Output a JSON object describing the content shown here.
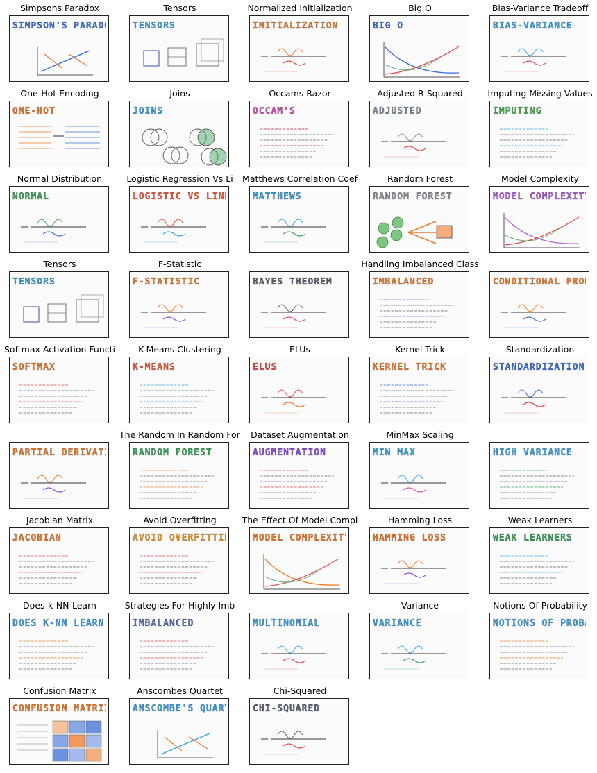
{
  "gallery": {
    "items": [
      {
        "title": "Simpsons Paradox",
        "accent": "#3b6fd6",
        "accent2": "#e4762a",
        "sketch": "SIMPSON'S PARADOX",
        "motif": "lines"
      },
      {
        "title": "Tensors",
        "accent": "#3aa1e0",
        "accent2": "#3b4fa8",
        "sketch": "TENSORS",
        "motif": "cubes"
      },
      {
        "title": "Normalized Initialization",
        "accent": "#ef7a2a",
        "accent2": "#d94a2f",
        "sketch": "INITIALIZATION",
        "motif": "formula"
      },
      {
        "title": "Big O",
        "accent": "#3b6fd6",
        "accent2": "#e24a4a",
        "sketch": "BIG O",
        "motif": "curves"
      },
      {
        "title": "Bias-Variance Tradeoff",
        "accent": "#3aa1e0",
        "accent2": "#e24a4a",
        "sketch": "BIAS-VARIANCE",
        "motif": "formula"
      },
      {
        "title": "One-Hot Encoding",
        "accent": "#ef7a2a",
        "accent2": "#3b6fd6",
        "sketch": "ONE-HOT",
        "motif": "table"
      },
      {
        "title": "Joins",
        "accent": "#3aa1e0",
        "accent2": "#3aa25a",
        "sketch": "JOINS",
        "motif": "venn"
      },
      {
        "title": "Occams Razor",
        "accent": "#d64fb4",
        "accent2": "#c2185b",
        "sketch": "OCCAM'S",
        "motif": "text"
      },
      {
        "title": "Adjusted R-Squared",
        "accent": "#7f8c9a",
        "accent2": "#e24a4a",
        "sketch": "ADJUSTED",
        "motif": "formula"
      },
      {
        "title": "Imputing Missing Values",
        "accent": "#4caf50",
        "accent2": "#3aa1e0",
        "sketch": "IMPUTING",
        "motif": "text"
      },
      {
        "title": "Normal Distribution",
        "accent": "#3aa25a",
        "accent2": "#3b6fd6",
        "sketch": "NORMAL",
        "motif": "formula"
      },
      {
        "title": "Logistic Regression Vs Li",
        "accent": "#ef5a3a",
        "accent2": "#3aa1e0",
        "sketch": "LOGISTIC VS LINEAR",
        "motif": "formula"
      },
      {
        "title": "Matthews Correlation Coef",
        "accent": "#3aa1e0",
        "accent2": "#3aa25a",
        "sketch": "MATTHEWS",
        "motif": "formula"
      },
      {
        "title": "Random Forest",
        "accent": "#8a8f98",
        "accent2": "#ef7a2a",
        "sketch": "RANDOM FOREST",
        "motif": "trees"
      },
      {
        "title": "Model Complexity",
        "accent": "#b05fd6",
        "accent2": "#e24a4a",
        "sketch": "MODEL COMPLEXITY",
        "motif": "curves"
      },
      {
        "title": "Tensors",
        "accent": "#3aa1e0",
        "accent2": "#3b4fa8",
        "sketch": "TENSORS",
        "motif": "cubes"
      },
      {
        "title": "F-Statistic",
        "accent": "#ef7a2a",
        "accent2": "#8a4fd6",
        "sketch": "F-STATISTIC",
        "motif": "formula"
      },
      {
        "title": "",
        "accent": "#5a6270",
        "accent2": "#e24a4a",
        "sketch": "BAYES THEOREM",
        "motif": "formula"
      },
      {
        "title": "Handling Imbalanced Class",
        "accent": "#ef7a2a",
        "accent2": "#3b6fd6",
        "sketch": "IMBALANCED",
        "motif": "text"
      },
      {
        "title": "",
        "accent": "#ef7a2a",
        "accent2": "#3b6fd6",
        "sketch": "CONDITIONAL PROBABILITY",
        "motif": "formula"
      },
      {
        "title": "Softmax Activation Functi",
        "accent": "#ef7a2a",
        "accent2": "#e24a4a",
        "sketch": "SOFTMAX",
        "motif": "text"
      },
      {
        "title": "K-Means Clustering",
        "accent": "#ef5a3a",
        "accent2": "#3aa1e0",
        "sketch": "K-MEANS",
        "motif": "text"
      },
      {
        "title": "ELUs",
        "accent": "#e24a4a",
        "accent2": "#ef7a2a",
        "sketch": "ELUs",
        "motif": "formula"
      },
      {
        "title": "Kernel Trick",
        "accent": "#ef7a2a",
        "accent2": "#3b6fd6",
        "sketch": "KERNEL TRICK",
        "motif": "text"
      },
      {
        "title": "Standardization",
        "accent": "#3b6fd6",
        "accent2": "#e24a4a",
        "sketch": "STANDARDIZATION",
        "motif": "formula"
      },
      {
        "title": "",
        "accent": "#ef7a2a",
        "accent2": "#8a4fd6",
        "sketch": "PARTIAL DERIVATIVE",
        "motif": "formula"
      },
      {
        "title": "The Random In Random Fore",
        "accent": "#3aa25a",
        "accent2": "#ef7a2a",
        "sketch": "RANDOM FOREST",
        "motif": "text"
      },
      {
        "title": "Dataset Augmentation",
        "accent": "#8a4fd6",
        "accent2": "#e24a4a",
        "sketch": "AUGMENTATION",
        "motif": "text"
      },
      {
        "title": "MinMax Scaling",
        "accent": "#3aa1e0",
        "accent2": "#d64fb4",
        "sketch": "MIN MAX",
        "motif": "formula"
      },
      {
        "title": "",
        "accent": "#3aa1e0",
        "accent2": "#3aa25a",
        "sketch": "HIGH VARIANCE",
        "motif": "text"
      },
      {
        "title": "Jacobian Matrix",
        "accent": "#ef7a2a",
        "accent2": "#e24a4a",
        "sketch": "JACOBIAN",
        "motif": "text"
      },
      {
        "title": "Avoid Overfitting",
        "accent": "#ef9a2a",
        "accent2": "#e24a4a",
        "sketch": "AVOID OVERFITTING",
        "motif": "text"
      },
      {
        "title": "The Effect Of Model Compl",
        "accent": "#ef7a2a",
        "accent2": "#e24a4a",
        "sketch": "MODEL COMPLEXITY",
        "motif": "curves"
      },
      {
        "title": "Hamming Loss",
        "accent": "#ef7a2a",
        "accent2": "#8a4fd6",
        "sketch": "HAMMING LOSS",
        "motif": "formula"
      },
      {
        "title": "Weak Learners",
        "accent": "#3aa25a",
        "accent2": "#3aa1e0",
        "sketch": "WEAK LEARNERS",
        "motif": "text"
      },
      {
        "title": "Does-k-NN-Learn",
        "accent": "#3aa1e0",
        "accent2": "#ef7a2a",
        "sketch": "DOES K-NN LEARN",
        "motif": "text"
      },
      {
        "title": "Strategies For Highly Imb",
        "accent": "#5a6fa8",
        "accent2": "#e24a4a",
        "sketch": "IMBALANCED",
        "motif": "text"
      },
      {
        "title": "",
        "accent": "#3aa1e0",
        "accent2": "#e24a4a",
        "sketch": "MULTINOMIAL",
        "motif": "formula"
      },
      {
        "title": "Variance",
        "accent": "#3aa1e0",
        "accent2": "#3aa25a",
        "sketch": "VARIANCE",
        "motif": "formula"
      },
      {
        "title": "Notions Of Probability",
        "accent": "#3aa1e0",
        "accent2": "#ef7a2a",
        "sketch": "NOTIONS OF PROBABILITY",
        "motif": "text"
      },
      {
        "title": "Confusion Matrix",
        "accent": "#ef7a2a",
        "accent2": "#3b6fd6",
        "sketch": "CONFUSION MATRIX",
        "motif": "grid"
      },
      {
        "title": "Anscombes Quartet",
        "accent": "#3aa1e0",
        "accent2": "#ef7a2a",
        "sketch": "ANSCOMBE'S QUARTET",
        "motif": "lines"
      },
      {
        "title": "Chi-Squared",
        "accent": "#5a6270",
        "accent2": "#e24a4a",
        "sketch": "CHI-SQUARED",
        "motif": "formula"
      }
    ]
  }
}
